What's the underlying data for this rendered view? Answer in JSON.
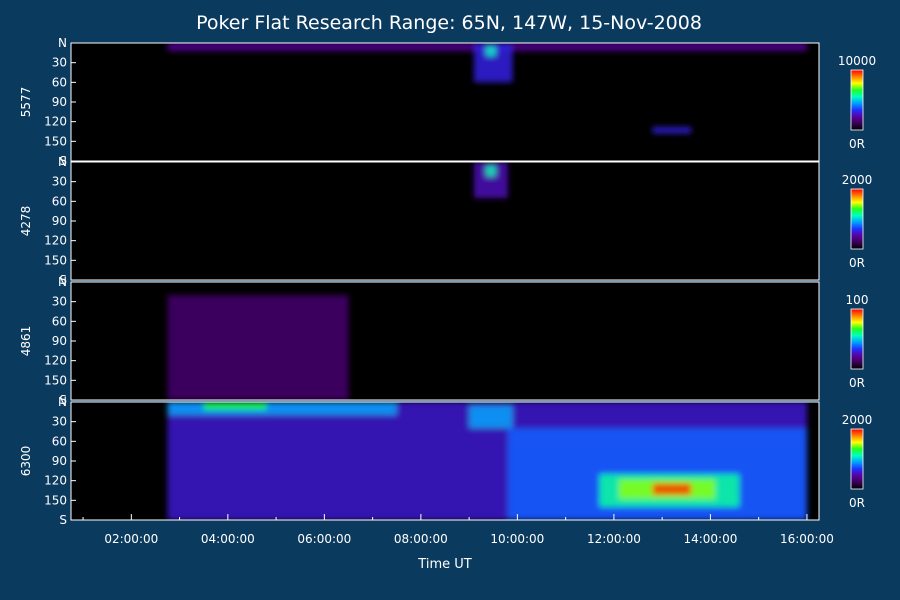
{
  "chart_data": {
    "type": "heatmap",
    "title": "Poker Flat Research Range: 65N, 147W, 15-Nov-2008",
    "xlabel": "Time UT",
    "xlim_hours": [
      0.75,
      16.25
    ],
    "x_ticks": [
      {
        "hours": 2,
        "label": "02:00:00"
      },
      {
        "hours": 4,
        "label": "04:00:00"
      },
      {
        "hours": 6,
        "label": "06:00:00"
      },
      {
        "hours": 8,
        "label": "08:00:00"
      },
      {
        "hours": 10,
        "label": "10:00:00"
      },
      {
        "hours": 12,
        "label": "12:00:00"
      },
      {
        "hours": 14,
        "label": "14:00:00"
      },
      {
        "hours": 16,
        "label": "16:00:00"
      }
    ],
    "y_range_deg": [
      0,
      180
    ],
    "y_ticks": [
      {
        "deg": 0,
        "label": "N"
      },
      {
        "deg": 30,
        "label": "30"
      },
      {
        "deg": 60,
        "label": "60"
      },
      {
        "deg": 90,
        "label": "90"
      },
      {
        "deg": 120,
        "label": "120"
      },
      {
        "deg": 150,
        "label": "150"
      },
      {
        "deg": 180,
        "label": "S"
      }
    ],
    "data_start_hours": 2.75,
    "data_end_hours": 16.0,
    "colormap": [
      "#000000",
      "#3a0055",
      "#5a00a0",
      "#2030ff",
      "#00a0ff",
      "#00ffc0",
      "#20ff20",
      "#ffff00",
      "#ff8000",
      "#ff0000"
    ],
    "panels": [
      {
        "name": "5577",
        "colorbar_max": "10000",
        "colorbar_min": "0R",
        "features": [
          {
            "t0": 2.75,
            "t1": 16.0,
            "y0": 0,
            "y1": 12,
            "level": 0.22
          },
          {
            "t0": 9.1,
            "t1": 9.9,
            "y0": 0,
            "y1": 60,
            "level": 0.3
          },
          {
            "t0": 9.35,
            "t1": 9.55,
            "y0": 5,
            "y1": 20,
            "level": 0.55
          },
          {
            "t0": 12.8,
            "t1": 13.6,
            "y0": 128,
            "y1": 138,
            "level": 0.3
          }
        ]
      },
      {
        "name": "4278",
        "colorbar_max": "2000",
        "colorbar_min": "0R",
        "features": [
          {
            "t0": 9.1,
            "t1": 9.8,
            "y0": 0,
            "y1": 55,
            "level": 0.25
          },
          {
            "t0": 9.35,
            "t1": 9.55,
            "y0": 5,
            "y1": 22,
            "level": 0.55
          }
        ]
      },
      {
        "name": "4861",
        "colorbar_max": "100",
        "colorbar_min": "0R",
        "features": [
          {
            "t0": 2.75,
            "t1": 6.5,
            "y0": 20,
            "y1": 180,
            "level": 0.15
          }
        ]
      },
      {
        "name": "6300",
        "colorbar_max": "2000",
        "colorbar_min": "0R",
        "features": [
          {
            "t0": 2.75,
            "t1": 16.0,
            "y0": 0,
            "y1": 180,
            "level": 0.28
          },
          {
            "t0": 2.75,
            "t1": 7.5,
            "y0": 0,
            "y1": 20,
            "level": 0.45
          },
          {
            "t0": 3.5,
            "t1": 4.8,
            "y0": 0,
            "y1": 12,
            "level": 0.65
          },
          {
            "t0": 9.0,
            "t1": 9.9,
            "y0": 5,
            "y1": 40,
            "level": 0.45
          },
          {
            "t0": 9.8,
            "t1": 16.0,
            "y0": 40,
            "y1": 180,
            "level": 0.38
          },
          {
            "t0": 11.7,
            "t1": 14.6,
            "y0": 110,
            "y1": 160,
            "level": 0.58
          },
          {
            "t0": 12.1,
            "t1": 14.1,
            "y0": 118,
            "y1": 148,
            "level": 0.72
          },
          {
            "t0": 12.8,
            "t1": 13.6,
            "y0": 124,
            "y1": 142,
            "level": 0.95
          }
        ]
      }
    ]
  }
}
